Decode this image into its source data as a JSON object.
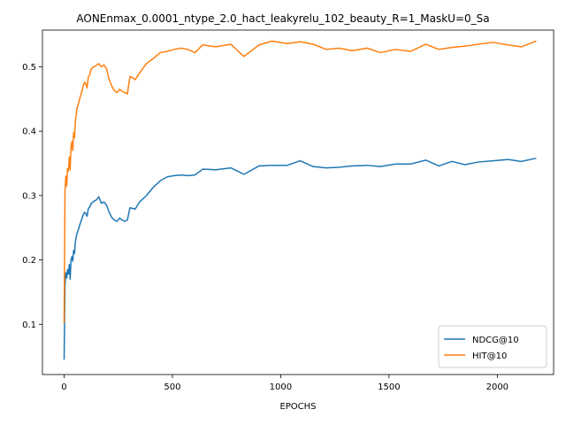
{
  "chart_data": {
    "type": "line",
    "title": "AONEnmax_0.0001_ntype_2.0_hact_leakyrelu_102_beauty_R=1_MaskU=0_Sa",
    "xlabel": "EPOCHS",
    "ylabel": "",
    "xlim": [
      -100,
      2260
    ],
    "ylim": [
      0.022,
      0.557
    ],
    "xticks": [
      0,
      500,
      1000,
      1500,
      2000
    ],
    "yticks": [
      0.1,
      0.2,
      0.3,
      0.4,
      0.5
    ],
    "xtick_labels": [
      "0",
      "500",
      "1000",
      "1500",
      "2000"
    ],
    "ytick_labels": [
      "0.1",
      "0.2",
      "0.3",
      "0.4",
      "0.5"
    ],
    "legend": "lower-right",
    "grid": false,
    "series": [
      {
        "name": "NDCG@10",
        "color": "#1f77b4",
        "x": [
          0,
          4,
          8,
          12,
          16,
          20,
          24,
          28,
          32,
          36,
          40,
          44,
          48,
          52,
          56,
          60,
          64,
          70,
          76,
          82,
          88,
          94,
          100,
          106,
          112,
          118,
          124,
          136,
          148,
          160,
          172,
          184,
          196,
          208,
          220,
          232,
          244,
          256,
          268,
          280,
          292,
          304,
          316,
          328,
          348,
          380,
          412,
          444,
          476,
          508,
          540,
          572,
          604,
          640,
          700,
          770,
          830,
          900,
          960,
          1030,
          1090,
          1150,
          1210,
          1270,
          1330,
          1400,
          1460,
          1530,
          1600,
          1670,
          1730,
          1790,
          1850,
          1910,
          1980,
          2050,
          2110,
          2180
        ],
        "values": [
          0.045,
          0.16,
          0.18,
          0.172,
          0.185,
          0.178,
          0.193,
          0.17,
          0.2,
          0.205,
          0.198,
          0.215,
          0.21,
          0.228,
          0.236,
          0.242,
          0.245,
          0.252,
          0.258,
          0.264,
          0.27,
          0.274,
          0.272,
          0.268,
          0.28,
          0.282,
          0.287,
          0.291,
          0.293,
          0.298,
          0.288,
          0.29,
          0.285,
          0.274,
          0.266,
          0.262,
          0.26,
          0.265,
          0.262,
          0.26,
          0.262,
          0.281,
          0.28,
          0.279,
          0.29,
          0.3,
          0.313,
          0.323,
          0.329,
          0.331,
          0.332,
          0.331,
          0.332,
          0.341,
          0.34,
          0.343,
          0.333,
          0.346,
          0.347,
          0.347,
          0.354,
          0.345,
          0.343,
          0.344,
          0.346,
          0.347,
          0.345,
          0.349,
          0.349,
          0.355,
          0.346,
          0.353,
          0.348,
          0.352,
          0.354,
          0.356,
          0.353,
          0.358
        ]
      },
      {
        "name": "HIT@10",
        "color": "#ff7f0e",
        "x": [
          0,
          4,
          8,
          12,
          16,
          20,
          24,
          28,
          32,
          36,
          40,
          44,
          48,
          52,
          56,
          60,
          64,
          70,
          76,
          82,
          88,
          94,
          100,
          106,
          112,
          118,
          124,
          136,
          148,
          160,
          172,
          184,
          196,
          208,
          220,
          232,
          244,
          256,
          268,
          280,
          292,
          304,
          316,
          328,
          348,
          380,
          412,
          444,
          476,
          508,
          540,
          572,
          604,
          640,
          700,
          770,
          830,
          900,
          960,
          1030,
          1090,
          1150,
          1210,
          1270,
          1330,
          1400,
          1460,
          1530,
          1600,
          1670,
          1730,
          1790,
          1850,
          1910,
          1980,
          2050,
          2110,
          2180
        ],
        "values": [
          0.102,
          0.305,
          0.33,
          0.315,
          0.342,
          0.338,
          0.36,
          0.34,
          0.375,
          0.384,
          0.37,
          0.398,
          0.39,
          0.415,
          0.425,
          0.437,
          0.44,
          0.448,
          0.455,
          0.462,
          0.47,
          0.476,
          0.474,
          0.467,
          0.485,
          0.487,
          0.496,
          0.5,
          0.502,
          0.505,
          0.5,
          0.503,
          0.497,
          0.48,
          0.47,
          0.463,
          0.46,
          0.465,
          0.462,
          0.46,
          0.458,
          0.485,
          0.483,
          0.48,
          0.49,
          0.505,
          0.513,
          0.522,
          0.524,
          0.527,
          0.529,
          0.527,
          0.522,
          0.534,
          0.531,
          0.535,
          0.516,
          0.534,
          0.54,
          0.536,
          0.539,
          0.535,
          0.527,
          0.529,
          0.525,
          0.529,
          0.522,
          0.527,
          0.524,
          0.535,
          0.527,
          0.53,
          0.532,
          0.535,
          0.538,
          0.534,
          0.531,
          0.54
        ]
      }
    ]
  }
}
